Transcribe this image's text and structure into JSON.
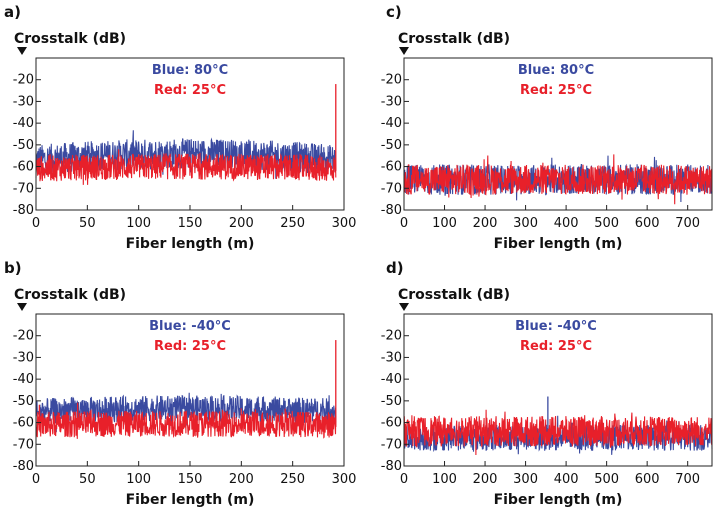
{
  "chart_data": [
    {
      "panel": "a)",
      "type": "line",
      "ylabel": "Crosstalk (dB)",
      "xlabel": "Fiber length (m)",
      "xlim": [
        0,
        300
      ],
      "ylim": [
        -80,
        -10
      ],
      "xticks": [
        "0",
        "50",
        "100",
        "150",
        "200",
        "250",
        "300"
      ],
      "yticks": [
        "-20",
        "-30",
        "-40",
        "-50",
        "-60",
        "-70",
        "-80"
      ],
      "legend": [
        "Blue: 80°C",
        "Red: 25°C"
      ],
      "series": [
        {
          "name": "Blue: 80°C",
          "color": "#3a4aa0",
          "x_range": [
            0,
            292
          ],
          "mean": [
            -57,
            -51,
            -57
          ],
          "amp": 7
        },
        {
          "name": "Red: 25°C",
          "color": "#e8202a",
          "x_range": [
            0,
            292
          ],
          "mean": [
            -61,
            -59,
            -61
          ],
          "amp": 6,
          "end_spike": -22
        }
      ]
    },
    {
      "panel": "c)",
      "type": "line",
      "ylabel": "Crosstalk (dB)",
      "xlabel": "Fiber length (m)",
      "xlim": [
        0,
        760
      ],
      "ylim": [
        -80,
        -10
      ],
      "xticks": [
        "0",
        "100",
        "200",
        "300",
        "400",
        "500",
        "600",
        "700"
      ],
      "yticks": [
        "-20",
        "-30",
        "-40",
        "-50",
        "-60",
        "-70",
        "-80"
      ],
      "legend": [
        "Blue: 80°C",
        "Red: 25°C"
      ],
      "series": [
        {
          "name": "Blue: 80°C",
          "color": "#3a4aa0",
          "x_range": [
            0,
            760
          ],
          "mean": [
            -66,
            -66,
            -66
          ],
          "amp": 7
        },
        {
          "name": "Red: 25°C",
          "color": "#e8202a",
          "x_range": [
            0,
            760
          ],
          "mean": [
            -66,
            -66,
            -66
          ],
          "amp": 7
        }
      ]
    },
    {
      "panel": "b)",
      "type": "line",
      "ylabel": "Crosstalk (dB)",
      "xlabel": "Fiber length (m)",
      "xlim": [
        0,
        300
      ],
      "ylim": [
        -80,
        -10
      ],
      "xticks": [
        "0",
        "50",
        "100",
        "150",
        "200",
        "250",
        "300"
      ],
      "yticks": [
        "-20",
        "-30",
        "-40",
        "-50",
        "-60",
        "-70",
        "-80"
      ],
      "legend": [
        "Blue: -40°C",
        "Red: 25°C"
      ],
      "series": [
        {
          "name": "Blue: -40°C",
          "color": "#3a4aa0",
          "x_range": [
            0,
            292
          ],
          "mean": [
            -55,
            -52,
            -55
          ],
          "amp": 6
        },
        {
          "name": "Red: 25°C",
          "color": "#e8202a",
          "x_range": [
            0,
            292
          ],
          "mean": [
            -61,
            -60,
            -61
          ],
          "amp": 6,
          "end_spike": -22
        }
      ]
    },
    {
      "panel": "d)",
      "type": "line",
      "ylabel": "Crosstalk (dB)",
      "xlabel": "Fiber length (m)",
      "xlim": [
        0,
        760
      ],
      "ylim": [
        -80,
        -10
      ],
      "xticks": [
        "0",
        "100",
        "200",
        "300",
        "400",
        "500",
        "600",
        "700"
      ],
      "yticks": [
        "-20",
        "-30",
        "-40",
        "-50",
        "-60",
        "-70",
        "-80"
      ],
      "legend": [
        "Blue: -40°C",
        "Red: 25°C"
      ],
      "series": [
        {
          "name": "Blue: -40°C",
          "color": "#3a4aa0",
          "x_range": [
            0,
            760
          ],
          "mean": [
            -67,
            -67,
            -67
          ],
          "amp": 6,
          "spike_x": 355,
          "spike_y": -48
        },
        {
          "name": "Red: 25°C",
          "color": "#e8202a",
          "x_range": [
            0,
            760
          ],
          "mean": [
            -64,
            -64,
            -64
          ],
          "amp": 7
        }
      ]
    }
  ]
}
